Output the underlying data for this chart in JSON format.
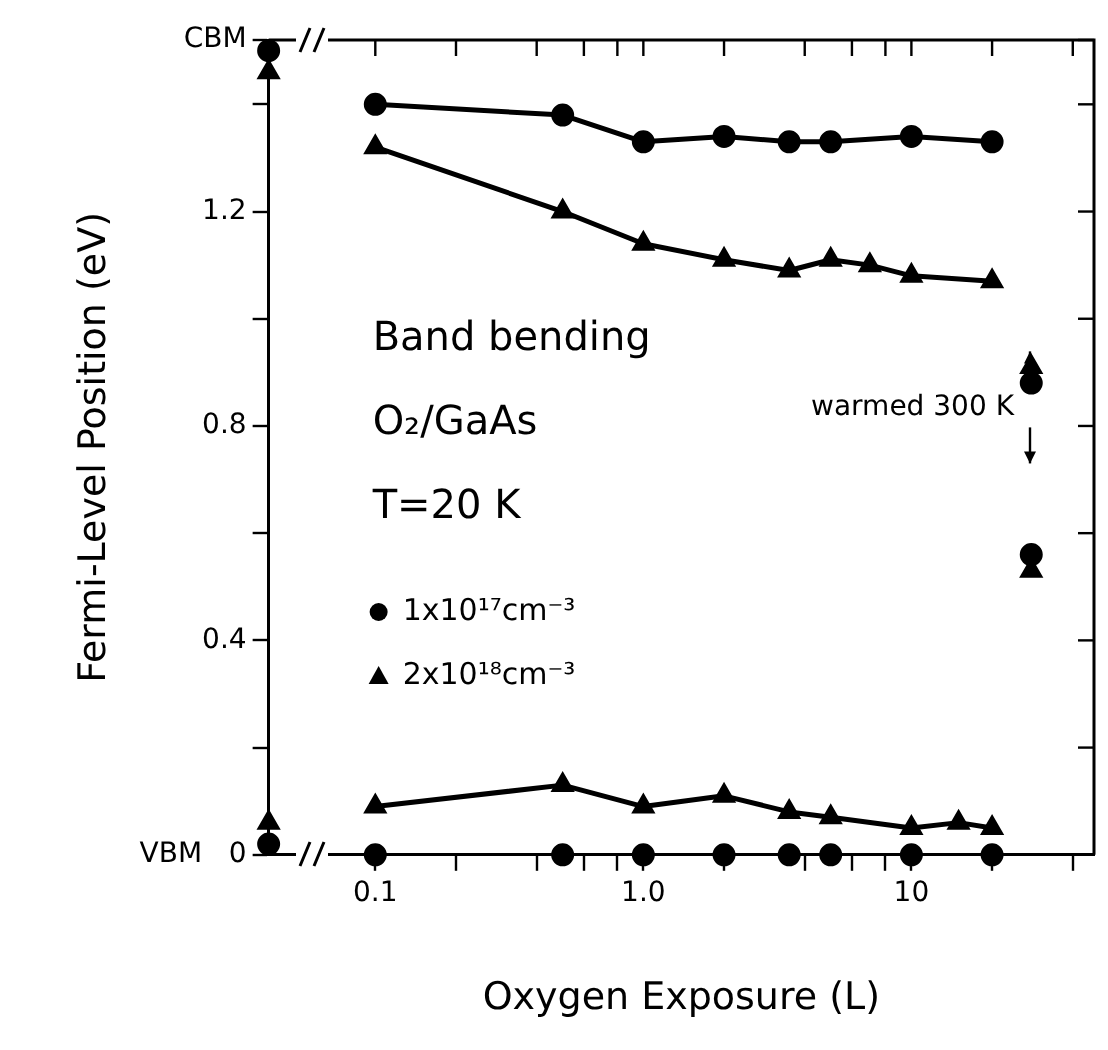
{
  "chart_data": {
    "type": "line",
    "xlabel": "Oxygen Exposure (L)",
    "ylabel": "Fermi-Level Position (eV)",
    "log": "x",
    "xlim": [
      0.04,
      48
    ],
    "ylim": [
      0,
      1.52
    ],
    "xticks": [
      0.1,
      {
        "value": 0.2,
        "label": null
      },
      {
        "value": 0.4,
        "label": null
      },
      {
        "value": 0.6,
        "label": null
      },
      {
        "value": 0.8,
        "label": null
      },
      {
        "value": 1,
        "label": "1.0"
      },
      {
        "value": 2,
        "label": null
      },
      {
        "value": 4,
        "label": null
      },
      {
        "value": 6,
        "label": null
      },
      {
        "value": 8,
        "label": null
      },
      10,
      {
        "value": 20,
        "label": null
      },
      {
        "value": 40,
        "label": null
      }
    ],
    "yticks": [
      {
        "value": 0,
        "label": "VBM   0"
      },
      {
        "value": 0.2,
        "label": null
      },
      0.4,
      {
        "value": 0.6,
        "label": null
      },
      0.8,
      {
        "value": 1.0,
        "label": null
      },
      1.2,
      {
        "value": 1.4,
        "label": null
      },
      {
        "value": 1.52,
        "label": "CBM"
      }
    ],
    "grid": false,
    "legend": "left",
    "line_style": "solid",
    "annotations": [
      "Band bending",
      "O₂/GaAs",
      "T=20 K",
      "warmed 300 K"
    ],
    "series": [
      {
        "name": "1x10¹⁷cm⁻³",
        "marker": "circle",
        "color": "#000000",
        "x": [
          0.1,
          0.5,
          1,
          2,
          3.5,
          5,
          10,
          20
        ],
        "values": [
          1.4,
          1.38,
          1.33,
          1.34,
          1.33,
          1.33,
          1.34,
          1.33
        ]
      },
      {
        "name": "2x10¹⁸cm⁻³",
        "marker": "triangle",
        "color": "#000000",
        "x": [
          0.1,
          0.5,
          1,
          2,
          3.5,
          5,
          7,
          10,
          20
        ],
        "values": [
          1.32,
          1.2,
          1.14,
          1.11,
          1.09,
          1.11,
          1.1,
          1.08,
          1.07
        ]
      },
      {
        "type": "scatter",
        "marker": "circle",
        "color": "#000000",
        "x": [
          0.1,
          0.5,
          1,
          2,
          3.5,
          5,
          10,
          20
        ],
        "values": [
          0,
          0,
          0,
          0,
          0,
          0,
          0,
          0
        ]
      },
      {
        "type": "line",
        "marker": "triangle",
        "color": "#000000",
        "x": [
          0.1,
          0.5,
          1,
          2,
          3.5,
          5,
          10,
          15,
          20
        ],
        "values": [
          0.09,
          0.13,
          0.09,
          0.11,
          0.08,
          0.07,
          0.05,
          0.06,
          0.05
        ]
      },
      {
        "type": "scatter",
        "marker": "circle",
        "color": "#000000",
        "x": [
          0.04,
          0.04,
          28,
          28
        ],
        "values": [
          1.5,
          0.02,
          0.88,
          0.56
        ]
      },
      {
        "type": "scatter",
        "marker": "triangle",
        "color": "#000000",
        "x": [
          0.04,
          0.04,
          28,
          28
        ],
        "values": [
          1.46,
          0.06,
          0.91,
          0.53
        ]
      }
    ]
  }
}
